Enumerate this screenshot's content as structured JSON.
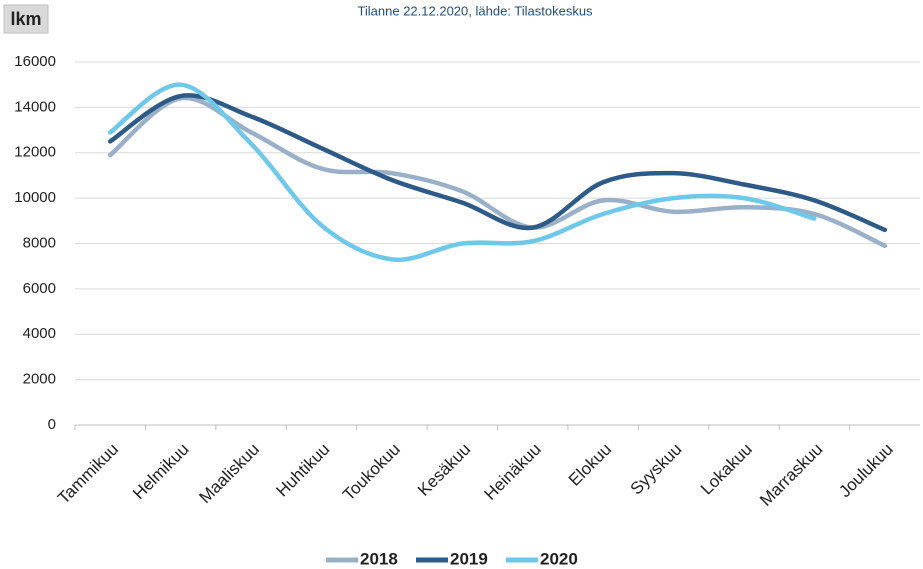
{
  "chart_data": {
    "type": "line",
    "subtitle": "Tilanne 22.12.2020, lähde: Tilastokeskus",
    "y_label": "lkm",
    "categories": [
      "Tammikuu",
      "Helmikuu",
      "Maaliskuu",
      "Huhtikuu",
      "Toukokuu",
      "Kesäkuu",
      "Heinäkuu",
      "Elokuu",
      "Syyskuu",
      "Lokakuu",
      "Marraskuu",
      "Joulukuu"
    ],
    "series": [
      {
        "name": "2018",
        "color": "#9aafc8",
        "values": [
          11900,
          14400,
          12900,
          11300,
          11100,
          10300,
          8700,
          9900,
          9400,
          9600,
          9300,
          7900
        ]
      },
      {
        "name": "2019",
        "color": "#2e5a87",
        "values": [
          12500,
          14500,
          13600,
          12200,
          10800,
          9800,
          8700,
          10700,
          11100,
          10600,
          9900,
          8600
        ]
      },
      {
        "name": "2020",
        "color": "#6fc8ea",
        "values": [
          12900,
          15000,
          12400,
          8800,
          7300,
          8000,
          8100,
          9300,
          10000,
          10000,
          9100,
          null
        ]
      }
    ],
    "ylim": [
      0,
      16000
    ],
    "yticks": [
      0,
      2000,
      4000,
      6000,
      8000,
      10000,
      12000,
      14000,
      16000
    ],
    "grid": true,
    "legend": "bottom",
    "smooth": true
  }
}
